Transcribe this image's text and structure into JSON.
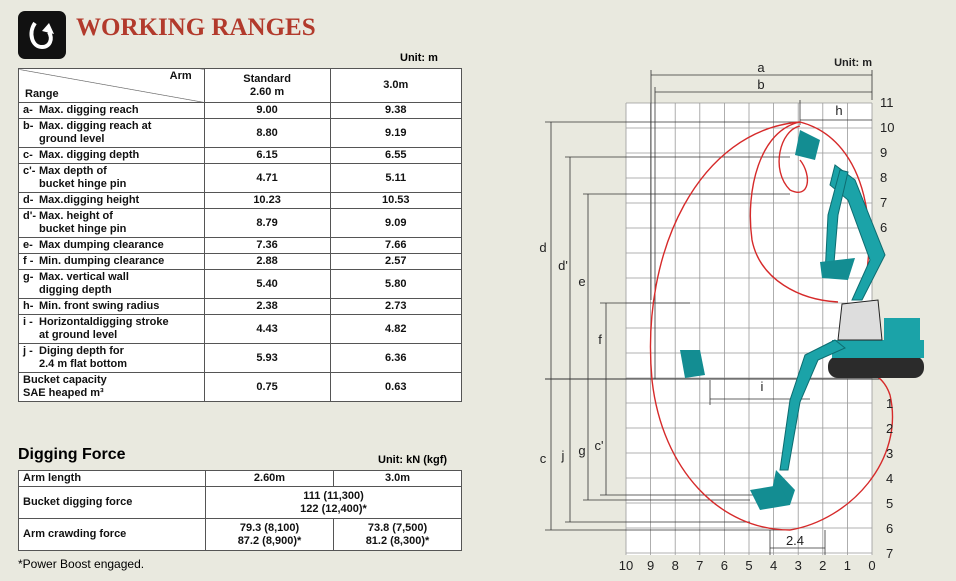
{
  "header": {
    "title": "WORKING RANGES"
  },
  "ranges": {
    "unit": "Unit: m",
    "corner_top": "Arm",
    "corner_bottom": "Range",
    "columns": [
      "Standard\n2.60 m",
      "3.0m"
    ],
    "rows": [
      {
        "key": "a-",
        "label": "Max. digging reach",
        "standard": "9.00",
        "arm_3m": "9.38"
      },
      {
        "key": "b-",
        "label": "Max. digging reach at\nground level",
        "standard": "8.80",
        "arm_3m": "9.19"
      },
      {
        "key": "c-",
        "label": "Max. digging depth",
        "standard": "6.15",
        "arm_3m": "6.55"
      },
      {
        "key": "c'-",
        "label": "Max depth of\nbucket hinge pin",
        "standard": "4.71",
        "arm_3m": "5.11"
      },
      {
        "key": "d-",
        "label": "Max.digging height",
        "standard": "10.23",
        "arm_3m": "10.53"
      },
      {
        "key": "d'-",
        "label": "Max. height of\nbucket hinge pin",
        "standard": "8.79",
        "arm_3m": "9.09"
      },
      {
        "key": "e-",
        "label": "Max dumping clearance",
        "standard": "7.36",
        "arm_3m": "7.66"
      },
      {
        "key": "f -",
        "label": "Min. dumping clearance",
        "standard": "2.88",
        "arm_3m": "2.57"
      },
      {
        "key": "g-",
        "label": "Max. vertical wall\ndigging depth",
        "standard": "5.40",
        "arm_3m": "5.80"
      },
      {
        "key": "h-",
        "label": "Min. front swing radius",
        "standard": "2.38",
        "arm_3m": "2.73"
      },
      {
        "key": "i -",
        "label": "Horizontaldigging stroke\nat ground level",
        "standard": "4.43",
        "arm_3m": "4.82"
      },
      {
        "key": "j -",
        "label": "Diging depth for\n2.4 m flat bottom",
        "standard": "5.93",
        "arm_3m": "6.36"
      },
      {
        "label": "Bucket capacity\nSAE heaped   m³",
        "standard": "0.75",
        "arm_3m": "0.63"
      }
    ]
  },
  "digging_force": {
    "title": "Digging Force",
    "unit": "Unit: kN (kgf)",
    "rows": [
      {
        "label": "Arm length",
        "cells": [
          "2.60m",
          "3.0m"
        ]
      },
      {
        "label": "Bucket digging force",
        "cells": [
          "111 (11,300)\n122 (12,400)*"
        ]
      },
      {
        "label": "Arm crawding force",
        "cells": [
          "79.3 (8,100)\n87.2 (8,900)*",
          "73.8 (7,500)\n81.2 (8,300)*"
        ]
      }
    ]
  },
  "footnote": "*Power Boost engaged.",
  "diagram": {
    "unit": "Unit: m",
    "dimensions": {
      "a": "a",
      "b": "b",
      "h": "h",
      "d": "d",
      "d_prime": "d'",
      "e": "e",
      "f": "f",
      "i": "i",
      "c": "c",
      "j": "j",
      "g": "g",
      "c_prime": "c'",
      "flat": "2.4"
    },
    "height_labels": [
      11,
      10,
      9,
      8,
      7,
      6
    ],
    "depth_labels": [
      1,
      2,
      3,
      4,
      5,
      6,
      7
    ],
    "reach_labels": [
      10,
      9,
      8,
      7,
      6,
      5,
      4,
      3,
      2,
      1,
      0
    ]
  }
}
